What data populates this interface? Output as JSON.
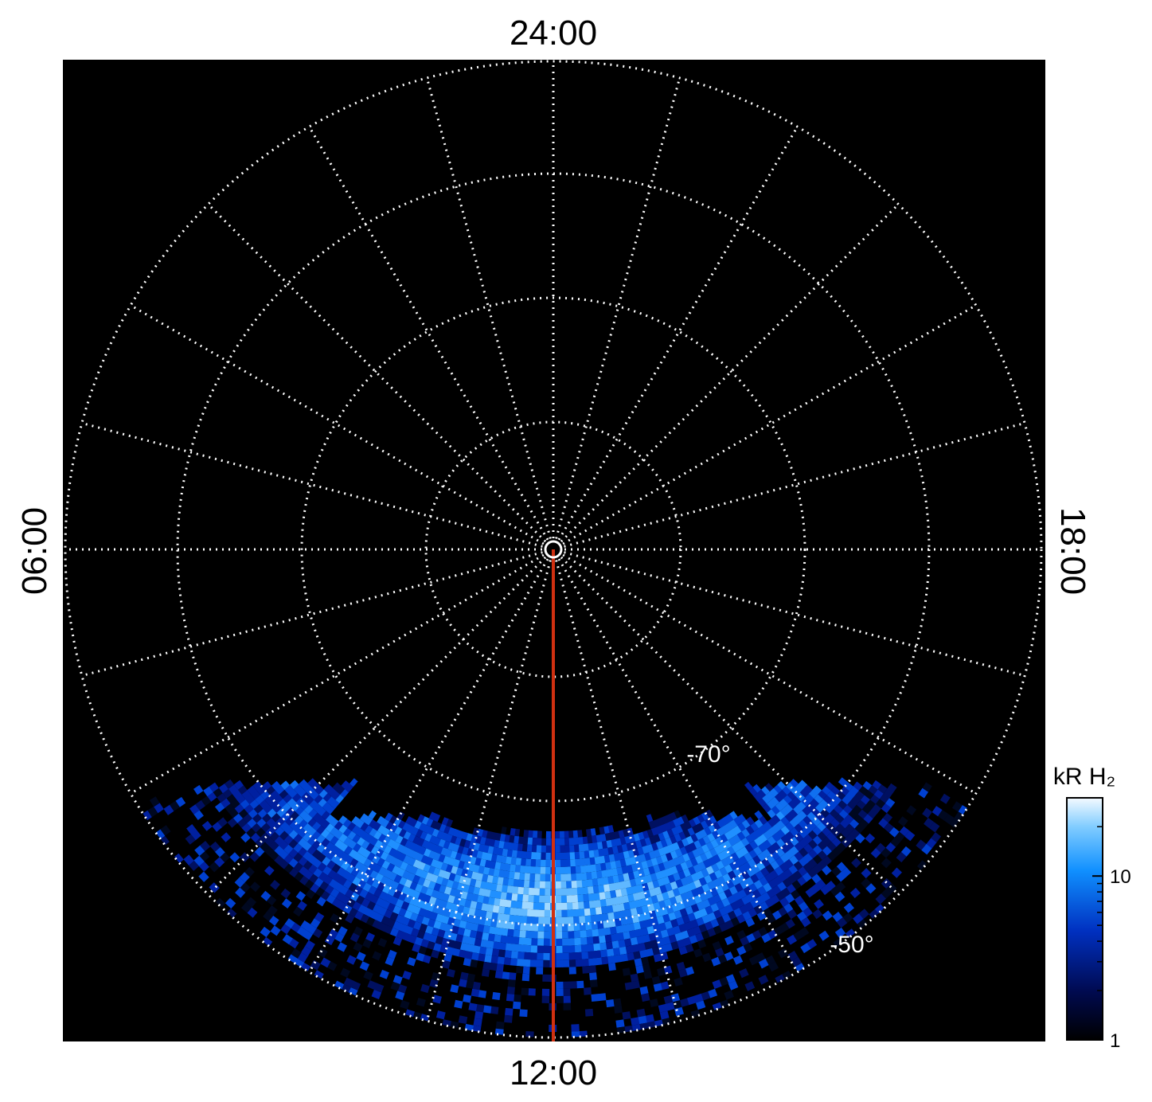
{
  "time_labels": {
    "top": "24:00",
    "bottom": "12:00",
    "left": "06:00",
    "right": "18:00"
  },
  "latitude_labels": [
    "-70°",
    "-50°"
  ],
  "colorbar": {
    "title": "kR H₂",
    "scale": "log",
    "lim": [
      1,
      30
    ],
    "ticks": [
      1,
      10
    ],
    "minor_ticks": [
      2,
      3,
      4,
      5,
      6,
      7,
      8,
      9,
      20,
      30
    ]
  }
}
